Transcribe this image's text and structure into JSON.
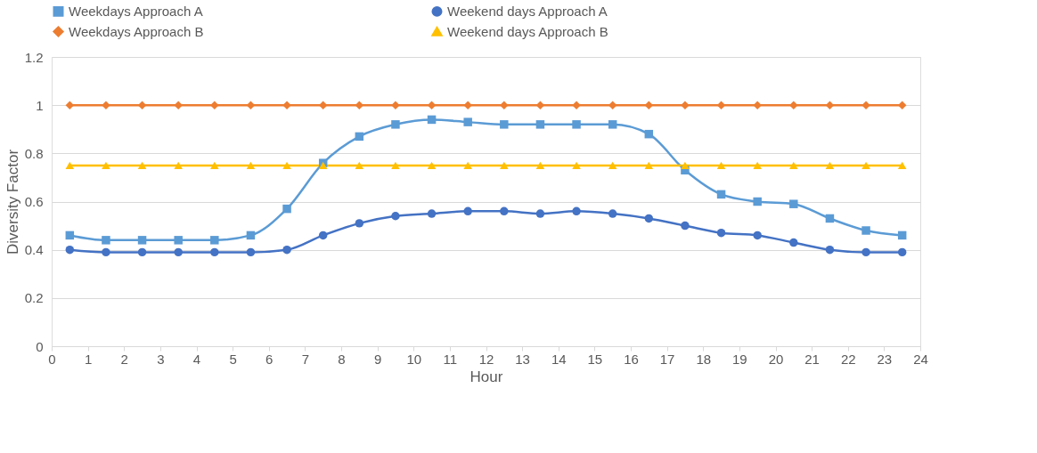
{
  "chart_data": {
    "type": "line",
    "xlabel": "Hour",
    "ylabel": "Diversity Factor",
    "x": [
      0.5,
      1.5,
      2.5,
      3.5,
      4.5,
      5.5,
      6.5,
      7.5,
      8.5,
      9.5,
      10.5,
      11.5,
      12.5,
      13.5,
      14.5,
      15.5,
      16.5,
      17.5,
      18.5,
      19.5,
      20.5,
      21.5,
      22.5,
      23.5
    ],
    "series": [
      {
        "name": "Weekdays Approach A",
        "color": "#5b9bd5",
        "marker": "square",
        "values": [
          0.46,
          0.44,
          0.44,
          0.44,
          0.44,
          0.46,
          0.57,
          0.76,
          0.87,
          0.92,
          0.94,
          0.93,
          0.92,
          0.92,
          0.92,
          0.92,
          0.88,
          0.73,
          0.63,
          0.6,
          0.59,
          0.53,
          0.48,
          0.46
        ]
      },
      {
        "name": "Weekend days Approach A",
        "color": "#4472c4",
        "marker": "circle",
        "values": [
          0.4,
          0.39,
          0.39,
          0.39,
          0.39,
          0.39,
          0.4,
          0.46,
          0.51,
          0.54,
          0.55,
          0.56,
          0.56,
          0.55,
          0.56,
          0.55,
          0.53,
          0.5,
          0.47,
          0.46,
          0.43,
          0.4,
          0.39,
          0.39
        ]
      },
      {
        "name": "Weekdays Approach B",
        "color": "#ed7d31",
        "marker": "diamond",
        "values": [
          1,
          1,
          1,
          1,
          1,
          1,
          1,
          1,
          1,
          1,
          1,
          1,
          1,
          1,
          1,
          1,
          1,
          1,
          1,
          1,
          1,
          1,
          1,
          1
        ]
      },
      {
        "name": "Weekend days Approach B",
        "color": "#ffc000",
        "marker": "triangle",
        "values": [
          0.75,
          0.75,
          0.75,
          0.75,
          0.75,
          0.75,
          0.75,
          0.75,
          0.75,
          0.75,
          0.75,
          0.75,
          0.75,
          0.75,
          0.75,
          0.75,
          0.75,
          0.75,
          0.75,
          0.75,
          0.75,
          0.75,
          0.75,
          0.75
        ]
      }
    ],
    "xlim": [
      0,
      24
    ],
    "xticks": [
      0,
      1,
      2,
      3,
      4,
      5,
      6,
      7,
      8,
      9,
      10,
      11,
      12,
      13,
      14,
      15,
      16,
      17,
      18,
      19,
      20,
      21,
      22,
      23,
      24
    ],
    "ylim": [
      0,
      1.2
    ],
    "yticks": [
      0,
      0.2,
      0.4,
      0.6,
      0.8,
      1,
      1.2
    ],
    "grid": "y",
    "legend": "top",
    "line_style": "solid"
  }
}
